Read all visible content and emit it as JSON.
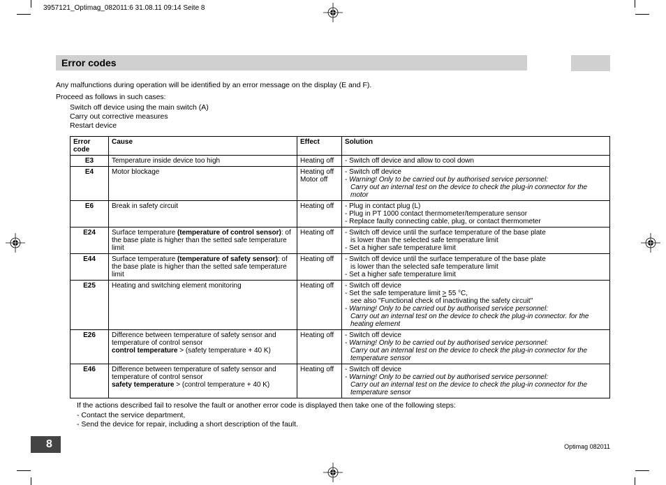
{
  "header_slug": "3957121_Optimag_082011:6  31.08.11  09:14  Seite 8",
  "section_title": "Error codes",
  "intro_line": "Any malfunctions during operation will be identified by an error message on the display (E and F).",
  "proceed_line": "Proceed as follows in such cases:",
  "steps": [
    "Switch off device using the main switch (A)",
    "Carry out corrective measures",
    "Restart device"
  ],
  "table": {
    "headers": {
      "code": "Error code",
      "cause": "Cause",
      "effect": "Effect",
      "solution": "Solution"
    },
    "rows": [
      {
        "code": "E3",
        "cause_html": "Temperature inside device too high",
        "effect_html": "Heating off",
        "solution_html": "<span class='line'>- Switch off device and allow to cool down</span>"
      },
      {
        "code": "E4",
        "cause_html": "Motor blockage",
        "effect_html": "Heating off<br>Motor off",
        "solution_html": "<span class='line'>- Switch off device</span><span class='line ital'>- Warning! Only to be carried out by authorised service personnel:</span><span class='indent ital'>Carry out an internal test on the device to check the plug-in connector for the motor</span>"
      },
      {
        "code": "E6",
        "cause_html": "Break in safety circuit",
        "effect_html": "Heating off",
        "solution_html": "<span class='line'>- Plug in contact plug (L)</span><span class='line'>- Plug in PT 1000 contact thermometer/temperature sensor</span><span class='line'>- Replace faulty connecting cable, plug, or contact thermometer</span>"
      },
      {
        "code": "E24",
        "cause_html": "Surface temperature <b>(temperature of control sensor)</b>: of the base plate is higher than the setted safe temperature limit",
        "effect_html": "Heating off",
        "solution_html": "<span class='line'>- Switch off device until the surface temperature of the base plate</span><span class='indent'>is lower than the selected safe temperature limit</span><span class='line'>- Set a higher safe temperature limit</span>"
      },
      {
        "code": "E44",
        "cause_html": "Surface temperature <b>(temperature of safety sensor)</b>: of the base plate is higher than the setted safe temperature limit",
        "effect_html": "Heating off",
        "solution_html": "<span class='line'>- Switch off device until the surface temperature of the base plate</span><span class='indent'>is lower than the selected safe temperature limit</span><span class='line'>- Set a higher safe temperature limit</span>"
      },
      {
        "code": "E25",
        "cause_html": "Heating and switching element monitoring",
        "effect_html": "Heating off",
        "solution_html": "<span class='line'>- Switch off device</span><span class='line'>- Set the safe temperature limit <u>&gt;</u> 55 °C,</span><span class='indent'>see also \"Functional check of inactivating the safety circuit\"</span><span class='line ital'>- Warning! Only to be carried out by authorised service personnel:</span><span class='indent ital'>Carry out an internal test on the device to check the plug-in connector. for the heating element</span>"
      },
      {
        "code": "E26",
        "cause_html": "Difference between temperature of safety sensor and temperature of control sensor<br><b>control temperature</b> &gt; (safety temperature + 40 K)",
        "effect_html": "Heating off",
        "solution_html": "<span class='line'>- Switch off device</span><span class='line ital'>- Warning! Only to be carried out by authorised service personnel:</span><span class='indent ital'>Carry out an internal test on the device to check the plug-in connector for the temperature sensor</span>"
      },
      {
        "code": "E46",
        "cause_html": "Difference between temperature of safety sensor and temperature of control sensor<br><b>safety temperature</b> &gt; (control temperature + 40 K)",
        "effect_html": "Heating off",
        "solution_html": "<span class='line'>- Switch off device</span><span class='line ital'>- Warning! Only to be carried out by authorised service personnel:</span><span class='indent ital'>Carry out an internal test on the device to check the plug-in connector for the temperature sensor</span>"
      }
    ]
  },
  "after_lines": [
    "If the actions described fail to resolve the fault or another error code is displayed then take one of the following steps:",
    "- Contact the service department,",
    "- Send the device for repair, including a short description of the fault."
  ],
  "footer_right": "Optimag 082011",
  "page_number": "8",
  "colors": {
    "header_bg": "#d0d0d0",
    "pagenum_bg": "#444444"
  }
}
